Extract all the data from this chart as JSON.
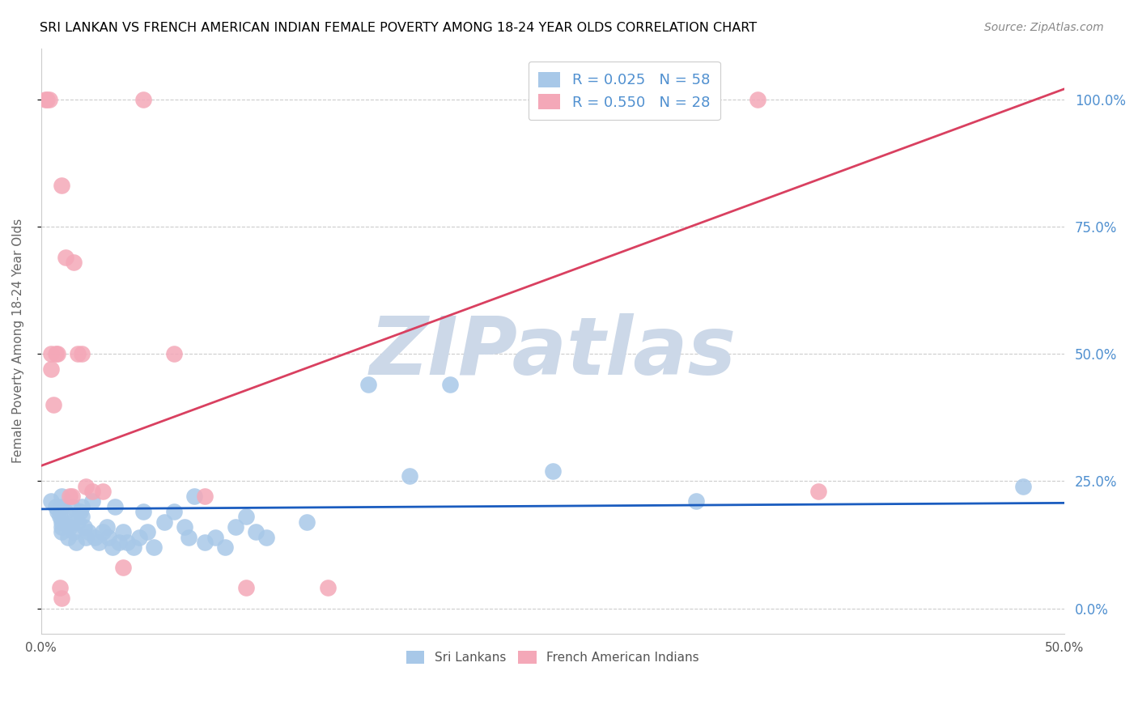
{
  "title": "SRI LANKAN VS FRENCH AMERICAN INDIAN FEMALE POVERTY AMONG 18-24 YEAR OLDS CORRELATION CHART",
  "source": "Source: ZipAtlas.com",
  "ylabel": "Female Poverty Among 18-24 Year Olds",
  "xlim": [
    0.0,
    0.5
  ],
  "ylim": [
    -0.05,
    1.1
  ],
  "yticks": [
    0.0,
    0.25,
    0.5,
    0.75,
    1.0
  ],
  "xticks": [
    0.0,
    0.1,
    0.2,
    0.3,
    0.4,
    0.5
  ],
  "blue_R": 0.025,
  "blue_N": 58,
  "pink_R": 0.55,
  "pink_N": 28,
  "blue_color": "#a8c8e8",
  "pink_color": "#f4a8b8",
  "blue_line_color": "#1a5cbf",
  "pink_line_color": "#d94060",
  "watermark": "ZIPatlas",
  "blue_x": [
    0.005,
    0.007,
    0.008,
    0.009,
    0.01,
    0.01,
    0.01,
    0.01,
    0.01,
    0.012,
    0.013,
    0.014,
    0.015,
    0.015,
    0.016,
    0.017,
    0.018,
    0.019,
    0.02,
    0.02,
    0.021,
    0.022,
    0.023,
    0.025,
    0.026,
    0.028,
    0.03,
    0.032,
    0.033,
    0.035,
    0.036,
    0.038,
    0.04,
    0.042,
    0.045,
    0.048,
    0.05,
    0.052,
    0.055,
    0.06,
    0.065,
    0.07,
    0.072,
    0.075,
    0.08,
    0.085,
    0.09,
    0.095,
    0.1,
    0.105,
    0.11,
    0.13,
    0.16,
    0.18,
    0.2,
    0.25,
    0.32,
    0.48
  ],
  "blue_y": [
    0.21,
    0.2,
    0.19,
    0.18,
    0.22,
    0.2,
    0.17,
    0.15,
    0.16,
    0.19,
    0.14,
    0.16,
    0.2,
    0.17,
    0.15,
    0.13,
    0.17,
    0.19,
    0.18,
    0.2,
    0.16,
    0.14,
    0.15,
    0.21,
    0.14,
    0.13,
    0.15,
    0.16,
    0.14,
    0.12,
    0.2,
    0.13,
    0.15,
    0.13,
    0.12,
    0.14,
    0.19,
    0.15,
    0.12,
    0.17,
    0.19,
    0.16,
    0.14,
    0.22,
    0.13,
    0.14,
    0.12,
    0.16,
    0.18,
    0.15,
    0.14,
    0.17,
    0.44,
    0.26,
    0.44,
    0.27,
    0.21,
    0.24
  ],
  "pink_x": [
    0.002,
    0.003,
    0.004,
    0.005,
    0.005,
    0.006,
    0.007,
    0.008,
    0.009,
    0.01,
    0.01,
    0.012,
    0.014,
    0.015,
    0.016,
    0.018,
    0.02,
    0.022,
    0.025,
    0.03,
    0.04,
    0.05,
    0.065,
    0.08,
    0.1,
    0.14,
    0.35,
    0.38
  ],
  "pink_y": [
    1.0,
    1.0,
    1.0,
    0.5,
    0.47,
    0.4,
    0.5,
    0.5,
    0.04,
    0.02,
    0.83,
    0.69,
    0.22,
    0.22,
    0.68,
    0.5,
    0.5,
    0.24,
    0.23,
    0.23,
    0.08,
    1.0,
    0.5,
    0.22,
    0.04,
    0.04,
    1.0,
    0.23
  ],
  "blue_line_x": [
    0.0,
    0.5
  ],
  "blue_line_y": [
    0.195,
    0.207
  ],
  "pink_line_x": [
    0.0,
    0.5
  ],
  "pink_line_y": [
    0.28,
    1.02
  ],
  "background_color": "#ffffff",
  "grid_color": "#cccccc",
  "watermark_color": "#ccd8e8",
  "title_color": "#000000",
  "right_tick_color": "#5090d0",
  "ylabel_color": "#666666"
}
